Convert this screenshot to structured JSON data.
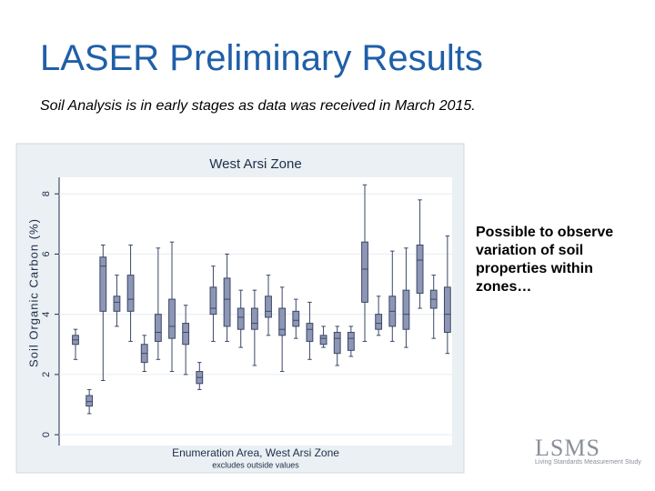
{
  "header": {
    "title": "LASER Preliminary Results",
    "subtitle": "Soil Analysis is in early stages as data was received in March 2015."
  },
  "side_note": "Possible to observe variation of soil properties within zones…",
  "logo": {
    "main": "LSMS",
    "sub": "Living Standards Measurement Study"
  },
  "chart_data": {
    "type": "box",
    "title": "West Arsi Zone",
    "y_label": "Soil Organic Carbon (%)",
    "x_label": "Enumeration Area, West Arsi Zone",
    "note": "excludes outside values",
    "ylim": [
      -0.36,
      8.55
    ],
    "yticks": [
      0,
      2,
      4,
      6,
      8
    ],
    "grid": true,
    "color": "#8d97b5",
    "edge_color": "#3c4766",
    "boxes": [
      {
        "low": 2.5,
        "q1": 3.0,
        "median": 3.15,
        "q3": 3.3,
        "high": 3.5
      },
      {
        "low": 0.7,
        "q1": 0.95,
        "median": 1.1,
        "q3": 1.3,
        "high": 1.5
      },
      {
        "low": 1.8,
        "q1": 4.1,
        "median": 5.6,
        "q3": 5.9,
        "high": 6.3
      },
      {
        "low": 3.6,
        "q1": 4.1,
        "median": 4.4,
        "q3": 4.6,
        "high": 5.3
      },
      {
        "low": 3.1,
        "q1": 4.1,
        "median": 4.5,
        "q3": 5.3,
        "high": 6.3
      },
      {
        "low": 2.1,
        "q1": 2.4,
        "median": 2.7,
        "q3": 3.0,
        "high": 3.3
      },
      {
        "low": 2.5,
        "q1": 3.1,
        "median": 3.4,
        "q3": 4.0,
        "high": 6.2
      },
      {
        "low": 2.1,
        "q1": 3.2,
        "median": 3.6,
        "q3": 4.5,
        "high": 6.4
      },
      {
        "low": 2.0,
        "q1": 3.0,
        "median": 3.4,
        "q3": 3.7,
        "high": 4.3
      },
      {
        "low": 1.5,
        "q1": 1.7,
        "median": 1.9,
        "q3": 2.1,
        "high": 2.4
      },
      {
        "low": 3.1,
        "q1": 4.0,
        "median": 4.2,
        "q3": 4.9,
        "high": 5.6
      },
      {
        "low": 3.1,
        "q1": 3.6,
        "median": 4.5,
        "q3": 5.2,
        "high": 6.0
      },
      {
        "low": 2.9,
        "q1": 3.5,
        "median": 3.9,
        "q3": 4.2,
        "high": 4.8
      },
      {
        "low": 2.3,
        "q1": 3.5,
        "median": 3.7,
        "q3": 4.2,
        "high": 4.8
      },
      {
        "low": 3.3,
        "q1": 3.9,
        "median": 4.1,
        "q3": 4.6,
        "high": 5.3
      },
      {
        "low": 2.1,
        "q1": 3.3,
        "median": 3.5,
        "q3": 4.2,
        "high": 4.9
      },
      {
        "low": 3.2,
        "q1": 3.6,
        "median": 3.8,
        "q3": 4.1,
        "high": 4.5
      },
      {
        "low": 2.5,
        "q1": 3.1,
        "median": 3.5,
        "q3": 3.7,
        "high": 4.4
      },
      {
        "low": 2.9,
        "q1": 3.0,
        "median": 3.2,
        "q3": 3.3,
        "high": 3.6
      },
      {
        "low": 2.3,
        "q1": 2.7,
        "median": 3.2,
        "q3": 3.4,
        "high": 3.6
      },
      {
        "low": 2.6,
        "q1": 2.8,
        "median": 3.2,
        "q3": 3.4,
        "high": 3.6
      },
      {
        "low": 3.1,
        "q1": 4.4,
        "median": 5.5,
        "q3": 6.4,
        "high": 8.3
      },
      {
        "low": 3.3,
        "q1": 3.5,
        "median": 3.7,
        "q3": 4.0,
        "high": 4.6
      },
      {
        "low": 3.1,
        "q1": 3.6,
        "median": 4.1,
        "q3": 4.6,
        "high": 6.1
      },
      {
        "low": 2.9,
        "q1": 3.5,
        "median": 4.0,
        "q3": 4.8,
        "high": 6.2
      },
      {
        "low": 4.2,
        "q1": 4.7,
        "median": 5.8,
        "q3": 6.3,
        "high": 7.8
      },
      {
        "low": 3.2,
        "q1": 4.2,
        "median": 4.5,
        "q3": 4.8,
        "high": 5.3
      },
      {
        "low": 2.7,
        "q1": 3.4,
        "median": 4.0,
        "q3": 4.9,
        "high": 6.6
      }
    ]
  }
}
